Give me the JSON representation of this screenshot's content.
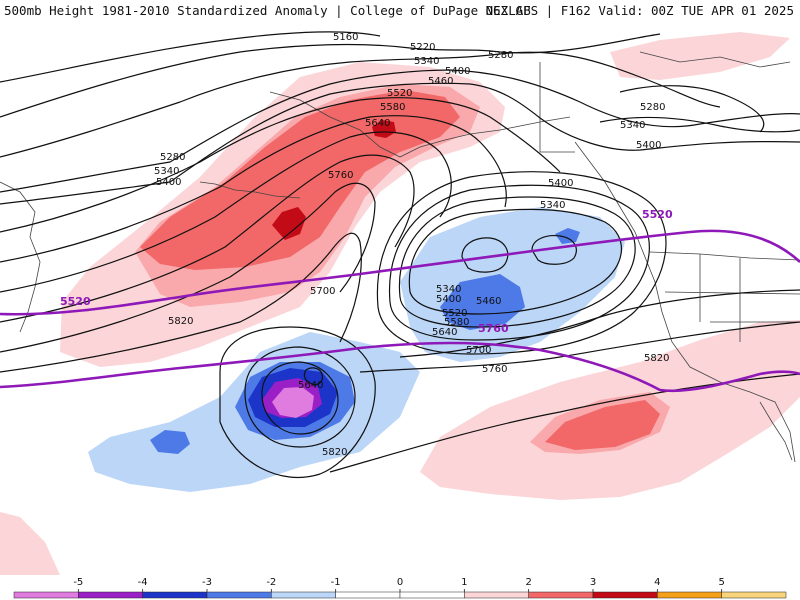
{
  "header": {
    "left_title": "500mb Height 1981-2010 Standardized Anomaly | College of DuPage NEXLAB",
    "right_title": "06Z GFS | F162 Valid: 00Z TUE APR 01 2025"
  },
  "map": {
    "type": "500mb height contours with standardized anomaly shading",
    "contour_labels": [
      "5160",
      "5220",
      "5280",
      "5340",
      "5400",
      "5460",
      "5520",
      "5580",
      "5640",
      "5700",
      "5760",
      "5820"
    ],
    "highlighted_contours": [
      "5520",
      "5760"
    ],
    "colors": {
      "anom_neg5": "#e07be0",
      "anom_neg4": "#9b1fc6",
      "anom_neg3": "#1c34c8",
      "anom_neg2": "#4e7ae8",
      "anom_neg1": "#bcd6f7",
      "anom_pos1": "#fbd5d8",
      "anom_pos2": "#f9a8ab",
      "anom_pos3": "#f26767",
      "anom_pos4": "#c20b17",
      "anom_pos5": "#f5a019",
      "highlight": "#8e18b8"
    }
  },
  "colorbar": {
    "ticks": [
      "-5",
      "-4",
      "-3",
      "-2",
      "-1",
      "0",
      "1",
      "2",
      "3",
      "4",
      "5"
    ],
    "bins": [
      {
        "color": "#e07be0"
      },
      {
        "color": "#9b1fc6"
      },
      {
        "color": "#1c34c8"
      },
      {
        "color": "#4e7ae8"
      },
      {
        "color": "#bcd6f7"
      },
      {
        "color": "#ffffff"
      },
      {
        "color": "#ffffff"
      },
      {
        "color": "#fbd5d8"
      },
      {
        "color": "#f26767"
      },
      {
        "color": "#c20b17"
      },
      {
        "color": "#f5a019"
      },
      {
        "color": "#f8d47c"
      }
    ]
  }
}
